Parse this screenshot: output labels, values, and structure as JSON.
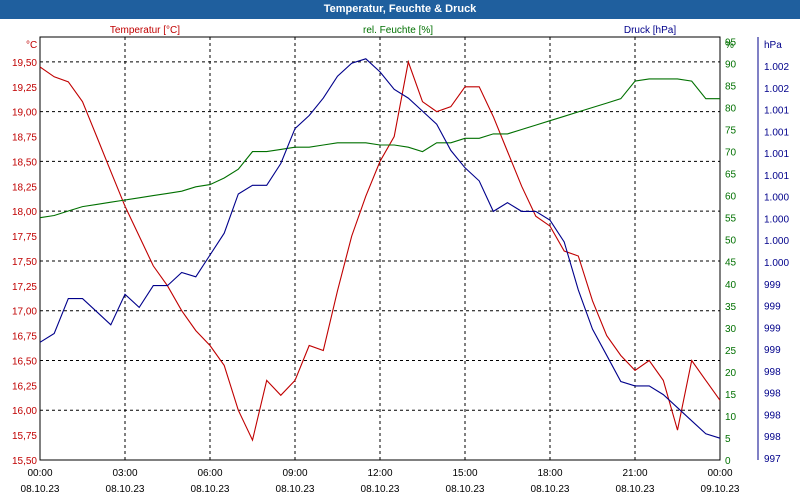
{
  "title": "Temperatur, Feuchte & Druck",
  "chart_data": {
    "type": "line",
    "title": "Temperatur, Feuchte & Druck",
    "x_ticks": [
      {
        "time": "00:00",
        "date": "08.10.23"
      },
      {
        "time": "03:00",
        "date": "08.10.23"
      },
      {
        "time": "06:00",
        "date": "08.10.23"
      },
      {
        "time": "09:00",
        "date": "08.10.23"
      },
      {
        "time": "12:00",
        "date": "08.10.23"
      },
      {
        "time": "15:00",
        "date": "08.10.23"
      },
      {
        "time": "18:00",
        "date": "08.10.23"
      },
      {
        "time": "21:00",
        "date": "08.10.23"
      },
      {
        "time": "00:00",
        "date": "09.10.23"
      }
    ],
    "xlim_hours": [
      0,
      24
    ],
    "grid": true,
    "axes": {
      "temp": {
        "unit": "°C",
        "ylim": [
          15.5,
          19.75
        ],
        "ticks": [
          "19,50",
          "19,25",
          "19,00",
          "18,75",
          "18,50",
          "18,25",
          "18,00",
          "17,75",
          "17,50",
          "17,25",
          "17,00",
          "16,75",
          "16,50",
          "16,25",
          "16,00",
          "15,75",
          "15,50"
        ]
      },
      "hum": {
        "unit": "%",
        "ylim": [
          0,
          96
        ],
        "ticks": [
          "96",
          "95",
          "90",
          "85",
          "80",
          "75",
          "70",
          "65",
          "60",
          "55",
          "50",
          "45",
          "40",
          "35",
          "30",
          "25",
          "20",
          "15",
          "10",
          "5",
          "0"
        ]
      },
      "press": {
        "unit": "hPa",
        "ticks": [
          "1.002",
          "1.002",
          "1.002",
          "1.001",
          "1.001",
          "1.001",
          "1.001",
          "1.000",
          "1.000",
          "1.000",
          "1.000",
          "999",
          "999",
          "999",
          "999",
          "998",
          "998",
          "998",
          "998",
          "997"
        ]
      }
    },
    "series": [
      {
        "name": "Temperatur [°C]",
        "axis": "temp",
        "color": "#c00000",
        "x": [
          0,
          0.5,
          1,
          1.5,
          2,
          2.5,
          3,
          3.5,
          4,
          4.5,
          5,
          5.5,
          6,
          6.5,
          7,
          7.5,
          8,
          8.5,
          9,
          9.5,
          10,
          10.5,
          11,
          11.5,
          12,
          12.5,
          13,
          13.5,
          14,
          14.5,
          15,
          15.5,
          16,
          16.5,
          17,
          17.5,
          18,
          18.5,
          19,
          19.5,
          20,
          20.5,
          21,
          21.5,
          22,
          22.5,
          23,
          23.5,
          24
        ],
        "values": [
          19.45,
          19.35,
          19.3,
          19.1,
          18.75,
          18.4,
          18.05,
          17.75,
          17.45,
          17.25,
          17.0,
          16.8,
          16.65,
          16.45,
          16.0,
          15.7,
          16.3,
          16.15,
          16.3,
          16.65,
          16.6,
          17.2,
          17.75,
          18.15,
          18.5,
          18.75,
          19.5,
          19.1,
          19.0,
          19.05,
          19.25,
          19.25,
          18.95,
          18.6,
          18.25,
          17.95,
          17.85,
          17.6,
          17.55,
          17.1,
          16.75,
          16.55,
          16.4,
          16.5,
          16.3,
          15.8,
          16.5,
          16.3,
          16.1
        ]
      },
      {
        "name": "rel. Feuchte [%]",
        "axis": "hum",
        "color": "#007000",
        "x": [
          0,
          0.5,
          1,
          1.5,
          2,
          2.5,
          3,
          3.5,
          4,
          4.5,
          5,
          5.5,
          6,
          6.5,
          7,
          7.5,
          8,
          8.5,
          9,
          9.5,
          10,
          10.5,
          11,
          11.5,
          12,
          12.5,
          13,
          13.5,
          14,
          14.5,
          15,
          15.5,
          16,
          16.5,
          17,
          17.5,
          18,
          18.5,
          19,
          19.5,
          20,
          20.5,
          21,
          21.5,
          22,
          22.5,
          23,
          23.5,
          24
        ],
        "values": [
          55,
          55.5,
          56.5,
          57.5,
          58,
          58.5,
          59,
          59.5,
          60,
          60.5,
          61,
          62,
          62.5,
          64,
          66,
          70,
          70,
          70.5,
          71,
          71,
          71.5,
          72,
          72,
          72,
          71.5,
          71.5,
          71,
          70,
          72,
          72,
          73,
          73,
          74,
          74,
          75,
          76,
          77,
          78,
          79,
          80,
          81,
          82,
          86,
          86.5,
          86.5,
          86.5,
          86,
          82,
          82
        ]
      },
      {
        "name": "Druck [hPa]",
        "axis": "press",
        "color": "#00008b",
        "x": [
          0,
          0.5,
          1,
          1.5,
          2,
          2.5,
          3,
          3.5,
          4,
          4.5,
          5,
          5.5,
          6,
          6.5,
          7,
          7.5,
          8,
          8.5,
          9,
          9.5,
          10,
          10.5,
          11,
          11.5,
          12,
          12.5,
          13,
          13.5,
          14,
          14.5,
          15,
          15.5,
          16,
          16.5,
          17,
          17.5,
          18,
          18.5,
          19,
          19.5,
          20,
          20.5,
          21,
          21.5,
          22,
          22.5,
          23,
          23.5,
          24
        ],
        "values": [
          998.95,
          999.05,
          999.45,
          999.45,
          999.3,
          999.15,
          999.5,
          999.35,
          999.6,
          999.6,
          999.75,
          999.7,
          999.95,
          1000.2,
          1000.65,
          1000.75,
          1000.75,
          1001.0,
          1001.4,
          1001.55,
          1001.75,
          1002.0,
          1002.15,
          1002.2,
          1002.05,
          1001.85,
          1001.75,
          1001.6,
          1001.45,
          1001.15,
          1000.95,
          1000.8,
          1000.45,
          1000.55,
          1000.45,
          1000.45,
          1000.35,
          1000.1,
          999.55,
          999.1,
          998.8,
          998.5,
          998.45,
          998.45,
          998.35,
          998.2,
          998.05,
          997.9,
          997.85
        ]
      }
    ]
  }
}
